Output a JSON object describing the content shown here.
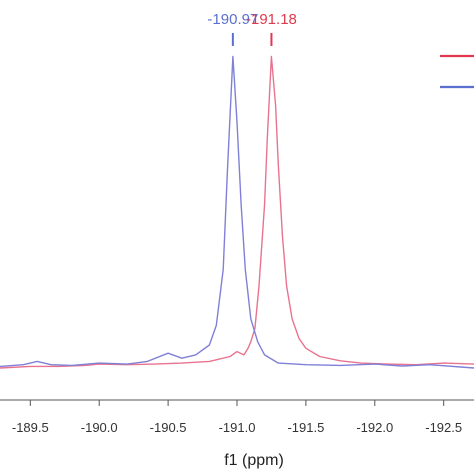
{
  "chart_data": {
    "type": "line",
    "title": "",
    "xlabel": "f1 (ppm)",
    "ylabel": "",
    "xlim": [
      -189.28,
      -192.72
    ],
    "ylim": [
      0,
      1.0
    ],
    "x_reversed": true,
    "grid": false,
    "ticks": [
      {
        "value": -189.5,
        "label": "-189.5"
      },
      {
        "value": -190.0,
        "label": "-190.0"
      },
      {
        "value": -190.5,
        "label": "-190.5"
      },
      {
        "value": -191.0,
        "label": "-191.0"
      },
      {
        "value": -191.5,
        "label": "-191.5"
      },
      {
        "value": -192.0,
        "label": "-192.0"
      },
      {
        "value": -192.5,
        "label": "-192.5"
      }
    ],
    "legend_position": "top-right",
    "series": [
      {
        "color": "#e8738f",
        "legend_color": "#e0384f",
        "x": [
          -189.28,
          -189.5,
          -189.7,
          -189.9,
          -190.0,
          -190.2,
          -190.4,
          -190.6,
          -190.8,
          -190.95,
          -191.0,
          -191.05,
          -191.08,
          -191.1,
          -191.13,
          -191.16,
          -191.2,
          -191.22,
          -191.25,
          -191.28,
          -191.3,
          -191.33,
          -191.36,
          -191.4,
          -191.45,
          -191.5,
          -191.6,
          -191.75,
          -191.9,
          -192.1,
          -192.3,
          -192.5,
          -192.72
        ],
        "y": [
          0.0,
          0.005,
          0.005,
          0.008,
          0.012,
          0.01,
          0.012,
          0.015,
          0.02,
          0.035,
          0.05,
          0.04,
          0.06,
          0.08,
          0.12,
          0.25,
          0.5,
          0.7,
          0.95,
          0.8,
          0.62,
          0.4,
          0.25,
          0.15,
          0.09,
          0.06,
          0.035,
          0.022,
          0.015,
          0.012,
          0.01,
          0.015,
          0.012
        ]
      },
      {
        "color": "#7f80d6",
        "legend_color": "#5b6fd0",
        "x": [
          -189.28,
          -189.45,
          -189.55,
          -189.65,
          -189.8,
          -190.0,
          -190.2,
          -190.35,
          -190.5,
          -190.6,
          -190.7,
          -190.8,
          -190.85,
          -190.9,
          -190.93,
          -190.97,
          -191.0,
          -191.03,
          -191.06,
          -191.1,
          -191.15,
          -191.2,
          -191.3,
          -191.5,
          -191.75,
          -192.0,
          -192.2,
          -192.4,
          -192.72
        ],
        "y": [
          0.005,
          0.01,
          0.02,
          0.01,
          0.008,
          0.015,
          0.012,
          0.02,
          0.045,
          0.03,
          0.04,
          0.07,
          0.13,
          0.3,
          0.6,
          0.95,
          0.75,
          0.5,
          0.3,
          0.15,
          0.08,
          0.04,
          0.015,
          0.01,
          0.008,
          0.012,
          0.006,
          0.01,
          0.0
        ]
      }
    ],
    "annotations": [
      {
        "text": "-190.97",
        "x": -190.97,
        "color": "#5b6fd0"
      },
      {
        "text": "-191.18",
        "x": -191.25,
        "color": "#e0384f"
      }
    ]
  }
}
